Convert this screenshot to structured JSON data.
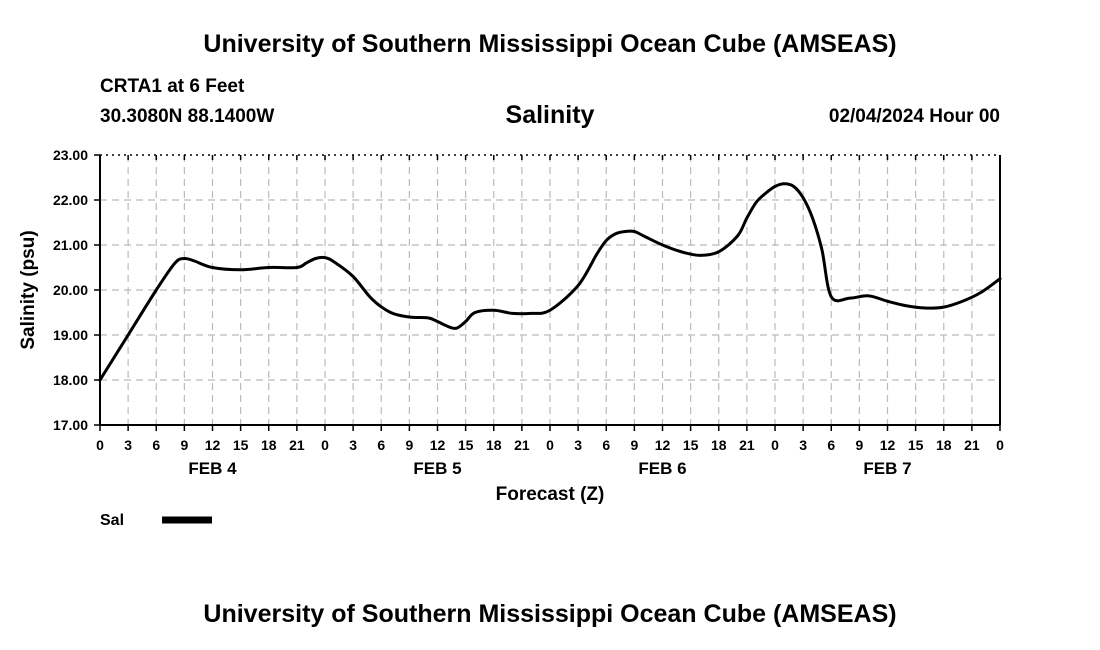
{
  "header": {
    "title": "University of Southern Mississippi Ocean Cube (AMSEAS)",
    "station": "CRTA1 at 6 Feet",
    "coords": "30.3080N  88.1400W",
    "date": "02/04/2024 Hour 00"
  },
  "footer": {
    "title": "University of Southern Mississippi Ocean Cube (AMSEAS)"
  },
  "chart_data": {
    "type": "line",
    "title": "Salinity",
    "xlabel": "Forecast (Z)",
    "ylabel": "Salinity (psu)",
    "ylim": [
      17,
      23
    ],
    "xlim": [
      0,
      96
    ],
    "grid": true,
    "y_ticks": [
      "17.00",
      "18.00",
      "19.00",
      "20.00",
      "21.00",
      "22.00",
      "23.00"
    ],
    "x_tick_labels": [
      "0",
      "3",
      "6",
      "9",
      "12",
      "15",
      "18",
      "21",
      "0",
      "3",
      "6",
      "9",
      "12",
      "15",
      "18",
      "21",
      "0",
      "3",
      "6",
      "9",
      "12",
      "15",
      "18",
      "21",
      "0",
      "3",
      "6",
      "9",
      "12",
      "15",
      "18",
      "21",
      "0"
    ],
    "day_labels": [
      {
        "label": "FEB 4",
        "hour": 12
      },
      {
        "label": "FEB 5",
        "hour": 36
      },
      {
        "label": "FEB 6",
        "hour": 60
      },
      {
        "label": "FEB 7",
        "hour": 84
      }
    ],
    "legend": {
      "position": "bottom-left",
      "entries": [
        {
          "name": "Sal",
          "color": "#000000"
        }
      ]
    },
    "series": [
      {
        "name": "Sal",
        "color": "#000000",
        "x": [
          0,
          3,
          6,
          8,
          9,
          10,
          12,
          15,
          18,
          21,
          22,
          23,
          24,
          25,
          27,
          29,
          31,
          33,
          35,
          36,
          37,
          38,
          39,
          40,
          42,
          44,
          46,
          48,
          51,
          53,
          54,
          55,
          56,
          57,
          58,
          60,
          62,
          64,
          66,
          68,
          69,
          70,
          71,
          72,
          73,
          74,
          75,
          76,
          77,
          78,
          80,
          82,
          84,
          86,
          88,
          90,
          92,
          94,
          96
        ],
        "y": [
          18.0,
          19.0,
          20.0,
          20.6,
          20.7,
          20.65,
          20.5,
          20.45,
          20.5,
          20.5,
          20.6,
          20.7,
          20.72,
          20.62,
          20.3,
          19.8,
          19.5,
          19.4,
          19.38,
          19.3,
          19.2,
          19.15,
          19.3,
          19.5,
          19.55,
          19.48,
          19.48,
          19.55,
          20.1,
          20.8,
          21.1,
          21.25,
          21.3,
          21.3,
          21.2,
          21.0,
          20.85,
          20.77,
          20.85,
          21.2,
          21.6,
          21.95,
          22.15,
          22.3,
          22.36,
          22.3,
          22.05,
          21.6,
          20.9,
          19.85,
          19.82,
          19.87,
          19.75,
          19.65,
          19.6,
          19.62,
          19.75,
          19.95,
          20.25
        ]
      }
    ]
  }
}
